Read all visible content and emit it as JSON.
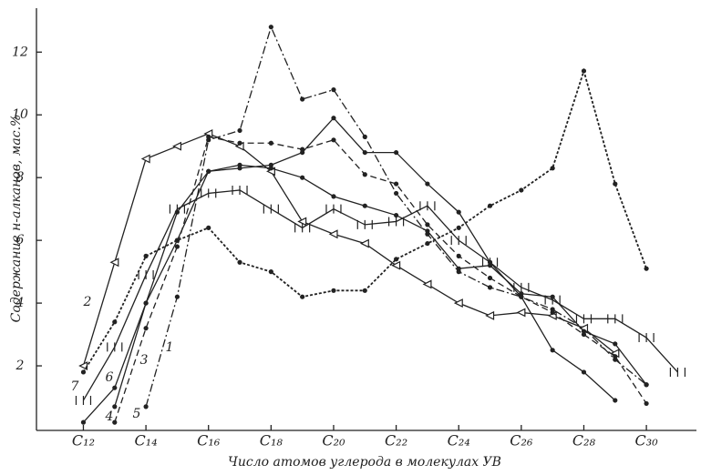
{
  "chart_data": {
    "type": "line",
    "xlabel": "Число атомов углерода в молекулах УВ",
    "ylabel": "Содержание н-алканов, мас.%",
    "xlim": [
      10.5,
      31.6
    ],
    "ylim": [
      0,
      13.4
    ],
    "xticks": [
      {
        "value": 12,
        "label": "C₁₂"
      },
      {
        "value": 14,
        "label": "C₁₄"
      },
      {
        "value": 16,
        "label": "C₁₆"
      },
      {
        "value": 18,
        "label": "C₁₈"
      },
      {
        "value": 20,
        "label": "C₂₀"
      },
      {
        "value": 22,
        "label": "C₂₂"
      },
      {
        "value": 24,
        "label": "C₂₄"
      },
      {
        "value": 26,
        "label": "C₂₆"
      },
      {
        "value": 28,
        "label": "C₂₈"
      },
      {
        "value": 30,
        "label": "C₃₀"
      }
    ],
    "yticks": [
      2,
      4,
      6,
      8,
      10,
      12
    ],
    "series": [
      {
        "name": "1",
        "color": "#222",
        "dash": "dash-dot",
        "marker": "dot",
        "x": [
          14,
          15,
          16,
          17,
          18,
          19,
          20,
          21,
          22,
          23,
          24,
          25,
          26,
          27,
          28,
          29,
          30
        ],
        "values": [
          0.7,
          4.2,
          9.2,
          9.5,
          12.8,
          10.5,
          10.8,
          9.3,
          7.5,
          6.2,
          5.0,
          4.5,
          4.2,
          3.8,
          3.2,
          2.2,
          1.4
        ]
      },
      {
        "name": "2",
        "color": "#222",
        "dash": "solid",
        "marker": "triangle",
        "x": [
          12,
          13,
          14,
          15,
          16,
          17,
          18,
          19,
          20,
          21,
          22,
          23,
          24,
          25,
          26,
          27,
          28,
          29
        ],
        "values": [
          2.0,
          5.3,
          8.6,
          9.0,
          9.4,
          9.0,
          8.2,
          6.6,
          6.2,
          5.9,
          5.2,
          4.6,
          4.0,
          3.6,
          3.7,
          3.6,
          3.2,
          2.4
        ]
      },
      {
        "name": "3",
        "color": "#222",
        "dash": "solid",
        "marker": "dot",
        "x": [
          13,
          14,
          15,
          16,
          17,
          18,
          19,
          20,
          21,
          22,
          23,
          24,
          25,
          26,
          27,
          28,
          29,
          30
        ],
        "values": [
          0.7,
          4.0,
          6.9,
          8.2,
          8.4,
          8.3,
          8.0,
          7.4,
          7.1,
          6.8,
          6.3,
          5.1,
          5.2,
          4.3,
          4.2,
          3.1,
          2.7,
          1.4
        ]
      },
      {
        "name": "4",
        "color": "#222",
        "dash": "solid",
        "marker": "dot",
        "x": [
          12,
          13,
          14,
          15,
          16,
          17,
          18,
          19,
          20,
          21,
          22,
          23,
          24,
          25,
          26,
          27,
          28,
          29
        ],
        "values": [
          0.2,
          1.3,
          4.0,
          6.0,
          8.2,
          8.3,
          8.4,
          8.8,
          9.9,
          8.8,
          8.8,
          7.8,
          6.9,
          5.3,
          4.2,
          2.5,
          1.8,
          0.9
        ]
      },
      {
        "name": "5",
        "color": "#222",
        "dash": "dashed",
        "marker": "dot",
        "x": [
          13,
          14,
          15,
          16,
          17,
          18,
          19,
          20,
          21,
          22,
          23,
          24,
          25,
          26,
          27,
          28,
          29,
          30
        ],
        "values": [
          0.2,
          3.2,
          5.8,
          9.3,
          9.1,
          9.1,
          8.9,
          9.2,
          8.1,
          7.8,
          6.5,
          5.5,
          4.8,
          4.2,
          3.7,
          3.0,
          2.3,
          0.8
        ]
      },
      {
        "name": "6",
        "color": "#222",
        "dash": "solid",
        "marker": "cross",
        "x": [
          12,
          13,
          14,
          15,
          16,
          17,
          18,
          19,
          20,
          21,
          22,
          23,
          24,
          25,
          26,
          27,
          28,
          29,
          30,
          31
        ],
        "values": [
          0.9,
          2.6,
          4.9,
          7.0,
          7.5,
          7.6,
          7.0,
          6.4,
          7.0,
          6.5,
          6.6,
          7.1,
          6.0,
          5.3,
          4.5,
          4.1,
          3.5,
          3.5,
          2.9,
          1.8
        ]
      },
      {
        "name": "7",
        "color": "#222",
        "dash": "wavy",
        "marker": "dot",
        "x": [
          12,
          13,
          14,
          15,
          16,
          17,
          18,
          19,
          20,
          21,
          22,
          23,
          24,
          25,
          26,
          27,
          28,
          29,
          30
        ],
        "values": [
          1.8,
          3.4,
          5.5,
          6.0,
          6.4,
          5.3,
          5.0,
          4.2,
          4.4,
          4.4,
          5.4,
          5.9,
          6.4,
          7.1,
          7.6,
          8.3,
          11.4,
          7.8,
          5.1
        ]
      }
    ]
  }
}
